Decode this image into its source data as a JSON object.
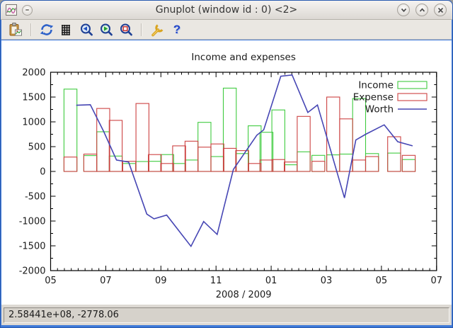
{
  "window": {
    "title": "Gnuplot (window id : 0) <2>",
    "app_icon": "gnuplot-app-icon",
    "controls": [
      {
        "name": "window-menu",
        "icon": "window-menu-icon"
      },
      {
        "name": "minimize",
        "icon": "chevron-down-icon"
      },
      {
        "name": "maximize",
        "icon": "chevron-up-icon"
      },
      {
        "name": "close",
        "icon": "close-icon"
      }
    ]
  },
  "toolbar": {
    "items": [
      {
        "type": "button",
        "name": "copy-to-clipboard",
        "icon": "clipboard-icon"
      },
      {
        "type": "separator"
      },
      {
        "type": "button",
        "name": "replot",
        "icon": "refresh-icon"
      },
      {
        "type": "button",
        "name": "toggle-grid",
        "icon": "grid-icon"
      },
      {
        "type": "button",
        "name": "zoom-previous",
        "icon": "zoom-previous-icon"
      },
      {
        "type": "button",
        "name": "zoom-next",
        "icon": "zoom-next-icon"
      },
      {
        "type": "button",
        "name": "unzoom",
        "icon": "zoom-reset-icon"
      },
      {
        "type": "separator"
      },
      {
        "type": "button",
        "name": "settings",
        "icon": "wrench-icon"
      },
      {
        "type": "button",
        "name": "help",
        "icon": "question-mark-icon"
      }
    ]
  },
  "status": {
    "coordinates": "2.58441e+08, -2778.06"
  },
  "chart_data": {
    "type": "combo",
    "title": "Income and expenses",
    "xlabel": "2008 / 2009",
    "x_axis": {
      "tick_labels": [
        "05",
        "07",
        "09",
        "11",
        "01",
        "03",
        "05",
        "07"
      ],
      "months_span": 14,
      "start_month": "2008-05",
      "end_month": "2009-07",
      "minor_tick_step_months": 0.25
    },
    "y_axis": {
      "tick_labels": [
        "2000",
        "1500",
        "1000",
        "500",
        "0",
        "-500",
        "-1000",
        "-1500",
        "-2000"
      ],
      "ticks": [
        2000,
        1500,
        1000,
        500,
        0,
        -500,
        -1000,
        -1500,
        -2000
      ],
      "lim": [
        -2000,
        2000
      ],
      "minor_tick_step": 250
    },
    "legend": {
      "position": "top-right",
      "entries": [
        "Income",
        "Expense",
        "Worth"
      ]
    },
    "colors": {
      "income": "#3fcb3f",
      "expense": "#cd4242",
      "worth": "#4646b4",
      "axis": "#000000",
      "background": "#ffffff"
    },
    "bars": {
      "x_months": [
        0.72,
        1.44,
        1.91,
        2.36,
        2.85,
        3.33,
        3.78,
        4.23,
        4.66,
        5.11,
        5.58,
        6.05,
        6.5,
        6.95,
        7.4,
        7.83,
        8.26,
        8.71,
        9.18,
        9.71,
        10.25,
        10.72,
        11.19,
        11.66,
        12.46,
        12.99
      ],
      "box_width_months": 0.47,
      "series": [
        {
          "name": "Income",
          "values": [
            1660,
            320,
            800,
            310,
            160,
            200,
            205,
            340,
            160,
            230,
            990,
            300,
            1680,
            360,
            920,
            790,
            1240,
            135,
            395,
            325,
            335,
            350,
            1470,
            360,
            370,
            240
          ]
        },
        {
          "name": "Expense",
          "values": [
            290,
            350,
            1270,
            1030,
            205,
            1370,
            340,
            160,
            515,
            610,
            490,
            555,
            465,
            420,
            160,
            230,
            240,
            190,
            1110,
            205,
            1500,
            1060,
            230,
            300,
            700,
            325
          ]
        }
      ]
    },
    "worth_line": {
      "name": "Worth",
      "points": [
        [
          0.93,
          1335
        ],
        [
          1.44,
          1345
        ],
        [
          1.93,
          800
        ],
        [
          2.39,
          230
        ],
        [
          2.83,
          190
        ],
        [
          3.49,
          -860
        ],
        [
          3.75,
          -955
        ],
        [
          4.21,
          -880
        ],
        [
          5.09,
          -1510
        ],
        [
          5.55,
          -1010
        ],
        [
          6.04,
          -1270
        ],
        [
          6.63,
          40
        ],
        [
          7.48,
          730
        ],
        [
          7.73,
          840
        ],
        [
          8.35,
          1920
        ],
        [
          8.76,
          1945
        ],
        [
          9.33,
          1190
        ],
        [
          9.68,
          1340
        ],
        [
          10.66,
          -535
        ],
        [
          11.07,
          635
        ],
        [
          11.43,
          750
        ],
        [
          12.1,
          940
        ],
        [
          12.59,
          600
        ],
        [
          13.13,
          515
        ]
      ]
    }
  }
}
